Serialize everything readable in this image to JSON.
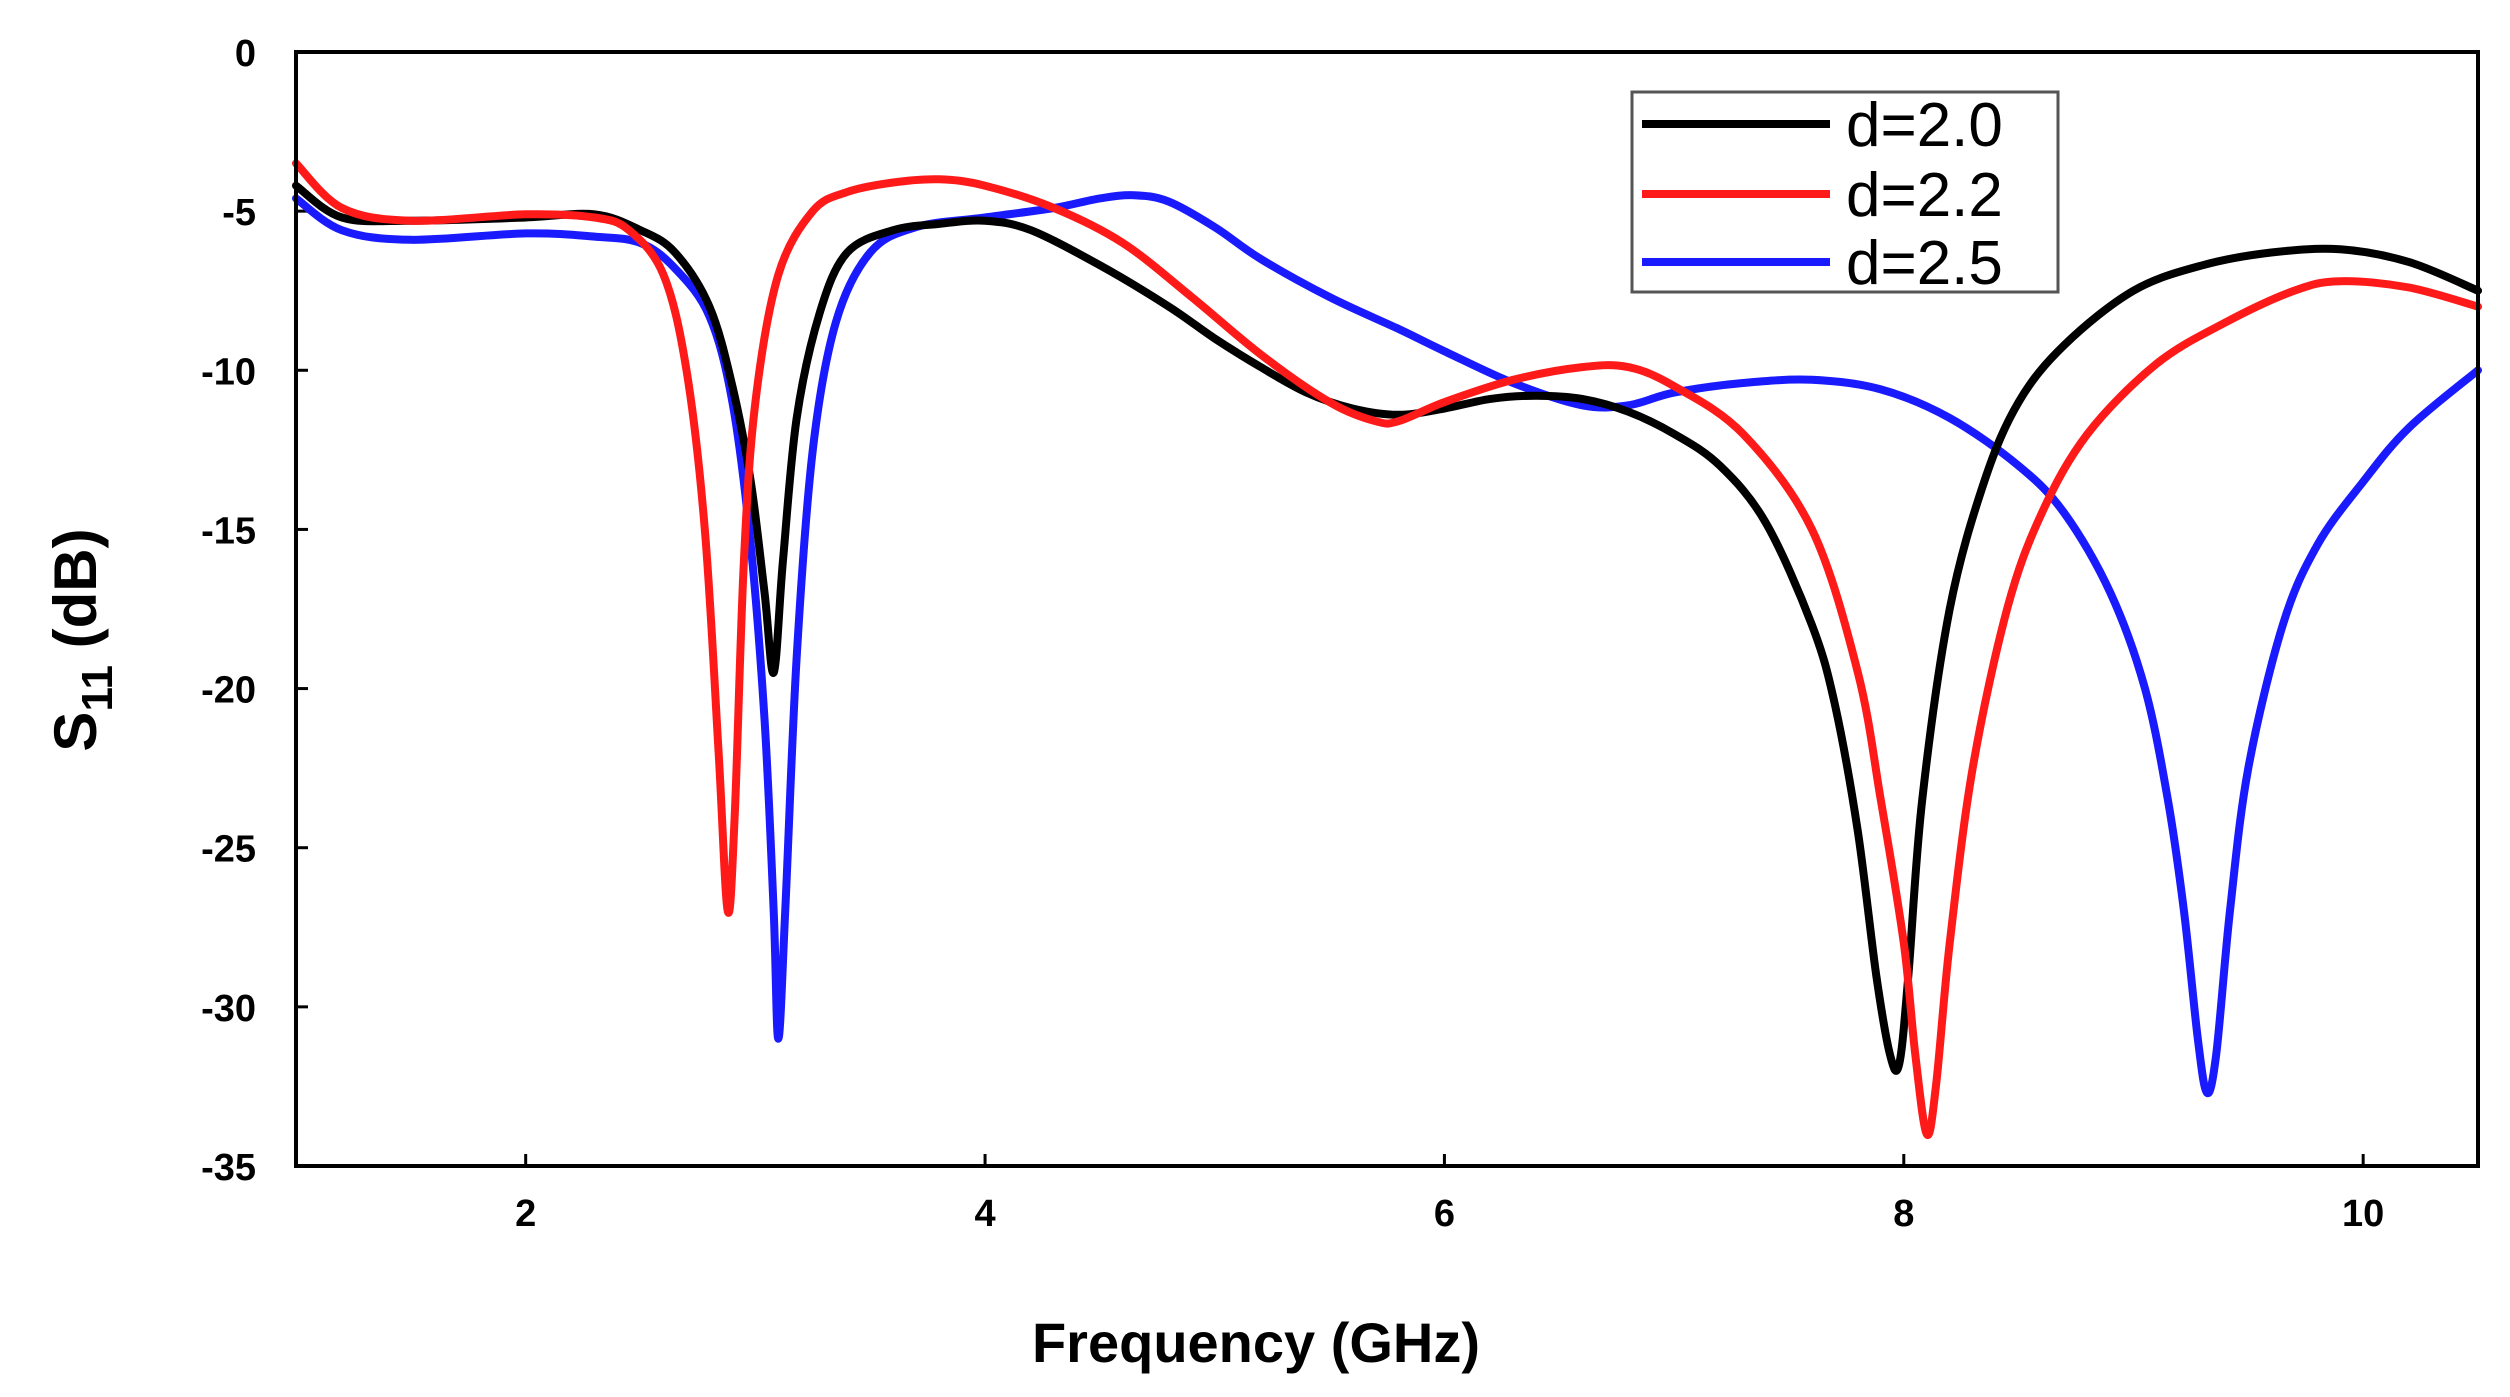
{
  "chart_data": {
    "type": "line",
    "title": "",
    "xlabel": "Frequency (GHz)",
    "ylabel_main": "S",
    "ylabel_sub": "11",
    "ylabel_unit": " (dB)",
    "xlim": [
      1,
      10.5
    ],
    "ylim": [
      -35,
      0
    ],
    "xticks": [
      2,
      4,
      6,
      8,
      10
    ],
    "yticks": [
      0,
      -5,
      -10,
      -15,
      -20,
      -25,
      -30,
      -35
    ],
    "legend_position": "top-right",
    "series": [
      {
        "name": "d=2.0",
        "color": "#000000",
        "x": [
          1.0,
          1.2,
          1.5,
          2.0,
          2.3,
          2.5,
          2.65,
          2.8,
          2.9,
          2.98,
          3.04,
          3.08,
          3.12,
          3.18,
          3.28,
          3.4,
          3.6,
          3.8,
          4.0,
          4.2,
          4.5,
          4.8,
          5.0,
          5.2,
          5.4,
          5.6,
          5.8,
          6.0,
          6.2,
          6.4,
          6.6,
          6.8,
          7.0,
          7.2,
          7.4,
          7.6,
          7.7,
          7.8,
          7.88,
          7.94,
          7.98,
          8.02,
          8.08,
          8.2,
          8.35,
          8.5,
          8.7,
          9.0,
          9.3,
          9.6,
          9.9,
          10.2,
          10.5
        ],
        "y": [
          -4.2,
          -5.2,
          -5.3,
          -5.2,
          -5.1,
          -5.6,
          -6.3,
          -8.0,
          -10.5,
          -13.5,
          -17.0,
          -19.5,
          -16.0,
          -11.5,
          -8.2,
          -6.3,
          -5.6,
          -5.4,
          -5.3,
          -5.6,
          -6.7,
          -8.0,
          -9.0,
          -9.9,
          -10.7,
          -11.2,
          -11.4,
          -11.2,
          -10.9,
          -10.8,
          -10.9,
          -11.3,
          -12.0,
          -13.0,
          -14.8,
          -18.0,
          -20.5,
          -24.5,
          -29.0,
          -31.5,
          -31.8,
          -29.0,
          -23.5,
          -17.5,
          -13.5,
          -11.0,
          -9.2,
          -7.5,
          -6.7,
          -6.3,
          -6.2,
          -6.6,
          -7.5
        ]
      },
      {
        "name": "d=2.2",
        "color": "#ff1a1a",
        "x": [
          1.0,
          1.2,
          1.5,
          2.0,
          2.3,
          2.45,
          2.6,
          2.7,
          2.78,
          2.84,
          2.88,
          2.91,
          2.95,
          3.0,
          3.1,
          3.25,
          3.4,
          3.6,
          3.8,
          4.0,
          4.3,
          4.6,
          4.9,
          5.2,
          5.5,
          5.7,
          5.8,
          6.0,
          6.3,
          6.6,
          6.8,
          7.0,
          7.3,
          7.6,
          7.8,
          7.9,
          8.0,
          8.05,
          8.1,
          8.14,
          8.2,
          8.3,
          8.45,
          8.6,
          8.8,
          9.1,
          9.4,
          9.7,
          9.9,
          10.2,
          10.5
        ],
        "y": [
          -3.5,
          -4.9,
          -5.3,
          -5.1,
          -5.2,
          -5.6,
          -7.0,
          -10.0,
          -15.0,
          -22.0,
          -27.0,
          -24.0,
          -16.0,
          -11.0,
          -7.0,
          -5.0,
          -4.4,
          -4.1,
          -4.0,
          -4.2,
          -4.9,
          -6.0,
          -7.7,
          -9.5,
          -11.0,
          -11.6,
          -11.6,
          -11.0,
          -10.3,
          -9.9,
          -9.9,
          -10.5,
          -12.0,
          -15.0,
          -19.5,
          -23.5,
          -28.0,
          -31.5,
          -34.0,
          -32.5,
          -28.0,
          -22.5,
          -17.5,
          -14.5,
          -12.0,
          -9.8,
          -8.5,
          -7.5,
          -7.2,
          -7.4,
          -8.0
        ]
      },
      {
        "name": "d=2.5",
        "color": "#1a1aff",
        "x": [
          1.0,
          1.2,
          1.5,
          2.0,
          2.3,
          2.5,
          2.65,
          2.8,
          2.9,
          2.98,
          3.04,
          3.08,
          3.1,
          3.13,
          3.18,
          3.25,
          3.35,
          3.5,
          3.7,
          4.0,
          4.3,
          4.5,
          4.65,
          4.8,
          5.0,
          5.2,
          5.5,
          5.8,
          6.0,
          6.3,
          6.6,
          6.8,
          7.0,
          7.3,
          7.6,
          7.9,
          8.2,
          8.5,
          8.7,
          8.9,
          9.05,
          9.15,
          9.22,
          9.28,
          9.32,
          9.36,
          9.42,
          9.5,
          9.65,
          9.8,
          10.0,
          10.2,
          10.5
        ],
        "y": [
          -4.6,
          -5.6,
          -5.9,
          -5.7,
          -5.8,
          -6.0,
          -6.8,
          -8.3,
          -11.0,
          -15.5,
          -21.0,
          -27.0,
          -31.0,
          -27.0,
          -19.0,
          -12.5,
          -8.5,
          -6.3,
          -5.5,
          -5.2,
          -4.9,
          -4.6,
          -4.5,
          -4.7,
          -5.5,
          -6.5,
          -7.7,
          -8.7,
          -9.4,
          -10.4,
          -11.1,
          -11.1,
          -10.7,
          -10.4,
          -10.3,
          -10.6,
          -11.5,
          -13.0,
          -14.5,
          -17.0,
          -20.0,
          -23.5,
          -27.0,
          -31.0,
          -32.7,
          -31.5,
          -27.0,
          -22.5,
          -18.0,
          -15.5,
          -13.5,
          -11.8,
          -10.0
        ]
      }
    ]
  }
}
